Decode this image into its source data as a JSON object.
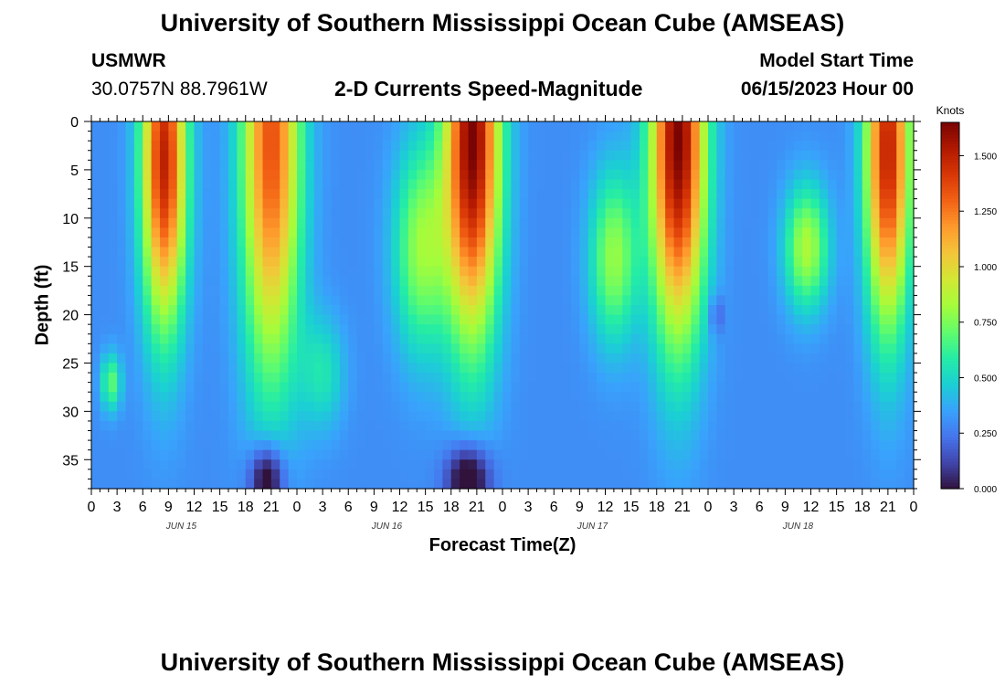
{
  "header": {
    "title": "University of Southern Mississippi Ocean Cube (AMSEAS)",
    "station": "USMWR",
    "coords": "30.0757N  88.7961W",
    "chart_title": "2-D Currents Speed-Magnitude",
    "model_start_label": "Model Start Time",
    "model_start_value": "06/15/2023 Hour 00"
  },
  "footer": {
    "title": "University of Southern Mississippi Ocean Cube (AMSEAS)"
  },
  "colors": [
    "#30123b",
    "#4145ab",
    "#4675ed",
    "#39a2fc",
    "#1bcfd4",
    "#24eca6",
    "#61fc6c",
    "#a4fc3b",
    "#d1e834",
    "#f3c63a",
    "#fe9b2d",
    "#f36315",
    "#d93806",
    "#b11901",
    "#7a0403"
  ],
  "chart_data": {
    "type": "heatmap",
    "title": "2-D Currents Speed-Magnitude",
    "xlabel": "Forecast Time(Z)",
    "ylabel": "Depth (ft)",
    "xlim": [
      0,
      96
    ],
    "ylim": [
      0,
      38
    ],
    "y_ticks": [
      0,
      5,
      10,
      15,
      20,
      25,
      30,
      35
    ],
    "x_tick_labels": [
      "0",
      "3",
      "6",
      "9",
      "12",
      "15",
      "18",
      "21",
      "0",
      "3",
      "6",
      "9",
      "12",
      "15",
      "18",
      "21",
      "0",
      "3",
      "6",
      "9",
      "12",
      "15",
      "18",
      "21",
      "0",
      "3",
      "6",
      "9",
      "12",
      "15",
      "18",
      "21",
      "0"
    ],
    "day_labels": [
      {
        "label": "JUN 15",
        "hour": 10.5
      },
      {
        "label": "JUN 16",
        "hour": 34.5
      },
      {
        "label": "JUN 17",
        "hour": 58.5
      },
      {
        "label": "JUN 18",
        "hour": 82.5
      }
    ],
    "colorbar": {
      "unit": "Knots",
      "min": 0,
      "max": 1.65,
      "ticks": [
        "0.000",
        "0.250",
        "0.500",
        "0.750",
        "1.000",
        "1.250",
        "1.500"
      ]
    },
    "features_description": "Speed maxima (knots): surface cores near hours 8, 21, 45, 69, 93; mid-depth cores near hours 37, 60, 82; near-bottom minima near hours 21 and 45.",
    "blobs": [
      {
        "hour": 8.5,
        "depth": 4,
        "dt": 2.6,
        "dd": 17,
        "speed": 1.2
      },
      {
        "hour": 21,
        "depth": 2,
        "dt": 3.4,
        "dd": 24,
        "speed": 1.05
      },
      {
        "hour": 38.5,
        "depth": 13,
        "dt": 3.2,
        "dd": 11,
        "speed": 0.5
      },
      {
        "hour": 44.5,
        "depth": 2,
        "dt": 3.2,
        "dd": 20,
        "speed": 1.35
      },
      {
        "hour": 61,
        "depth": 14,
        "dt": 2.8,
        "dd": 9,
        "speed": 0.5
      },
      {
        "hour": 68.5,
        "depth": 2,
        "dt": 3.2,
        "dd": 20,
        "speed": 1.35
      },
      {
        "hour": 83.5,
        "depth": 13,
        "dt": 2.6,
        "dd": 6.5,
        "speed": 0.55
      },
      {
        "hour": 93,
        "depth": 3,
        "dt": 2.6,
        "dd": 18,
        "speed": 1.2
      },
      {
        "hour": 2.3,
        "depth": 27,
        "dt": 1.2,
        "dd": 3,
        "speed": 0.4
      },
      {
        "hour": 27,
        "depth": 26,
        "dt": 2.6,
        "dd": 6,
        "speed": 0.25
      }
    ],
    "lows": [
      {
        "hour": 20.5,
        "depth": 37,
        "dt": 2,
        "dd": 3.5,
        "speed": 0.45
      },
      {
        "hour": 44,
        "depth": 37,
        "dt": 2.5,
        "dd": 3.5,
        "speed": 0.45
      },
      {
        "hour": 73,
        "depth": 20,
        "dt": 0.7,
        "dd": 2,
        "speed": 0.2
      }
    ]
  }
}
